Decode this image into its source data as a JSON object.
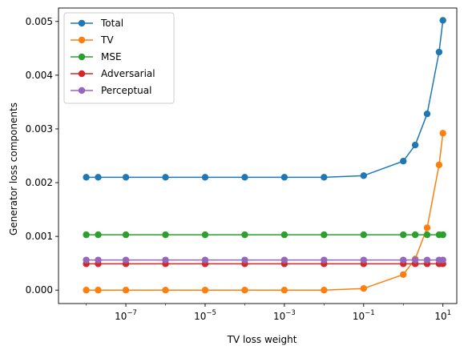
{
  "chart_data": {
    "type": "line",
    "xlabel": "TV loss weight",
    "ylabel": "Generator loss components",
    "xscale": "log",
    "xlim_log10": [
      -8.7,
      1.35
    ],
    "ylim": [
      -0.00025,
      0.00525
    ],
    "x_ticks": [
      1e-07,
      1e-05,
      0.001,
      0.1,
      10
    ],
    "x_tick_labels": [
      {
        "base": "10",
        "exp": "−7"
      },
      {
        "base": "10",
        "exp": "−5"
      },
      {
        "base": "10",
        "exp": "−3"
      },
      {
        "base": "10",
        "exp": "−1"
      },
      {
        "base": "10",
        "exp": "1"
      }
    ],
    "y_ticks": [
      0.0,
      0.001,
      0.002,
      0.003,
      0.004,
      0.005
    ],
    "y_tick_labels": [
      "0.000",
      "0.001",
      "0.002",
      "0.003",
      "0.004",
      "0.005"
    ],
    "grid": false,
    "legend_position": "top-left",
    "x": [
      1e-08,
      2e-08,
      1e-07,
      1e-06,
      1e-05,
      0.0001,
      0.001,
      0.01,
      0.1,
      1,
      2,
      4,
      8,
      10
    ],
    "series": [
      {
        "name": "Total",
        "color": "#1f77b4",
        "values": [
          0.0021,
          0.0021,
          0.0021,
          0.0021,
          0.0021,
          0.0021,
          0.0021,
          0.0021,
          0.00213,
          0.0024,
          0.0027,
          0.00328,
          0.00443,
          0.00502
        ]
      },
      {
        "name": "TV",
        "color": "#ff7f0e",
        "values": [
          0.0,
          0.0,
          0.0,
          0.0,
          0.0,
          0.0,
          0.0,
          0.0,
          3e-05,
          0.00029,
          0.00058,
          0.00116,
          0.00233,
          0.00292
        ]
      },
      {
        "name": "MSE",
        "color": "#2ca02c",
        "values": [
          0.00103,
          0.00103,
          0.00103,
          0.00103,
          0.00103,
          0.00103,
          0.00103,
          0.00103,
          0.00103,
          0.00103,
          0.00103,
          0.00103,
          0.00103,
          0.00103
        ]
      },
      {
        "name": "Adversarial",
        "color": "#d62728",
        "values": [
          0.00049,
          0.00049,
          0.00049,
          0.00049,
          0.00049,
          0.00049,
          0.00049,
          0.00049,
          0.00049,
          0.00049,
          0.00049,
          0.00049,
          0.00049,
          0.00049
        ]
      },
      {
        "name": "Perceptual",
        "color": "#9467bd",
        "values": [
          0.00056,
          0.00056,
          0.00056,
          0.00056,
          0.00056,
          0.00056,
          0.00056,
          0.00056,
          0.00056,
          0.00056,
          0.00056,
          0.00056,
          0.00056,
          0.00056
        ]
      }
    ]
  }
}
